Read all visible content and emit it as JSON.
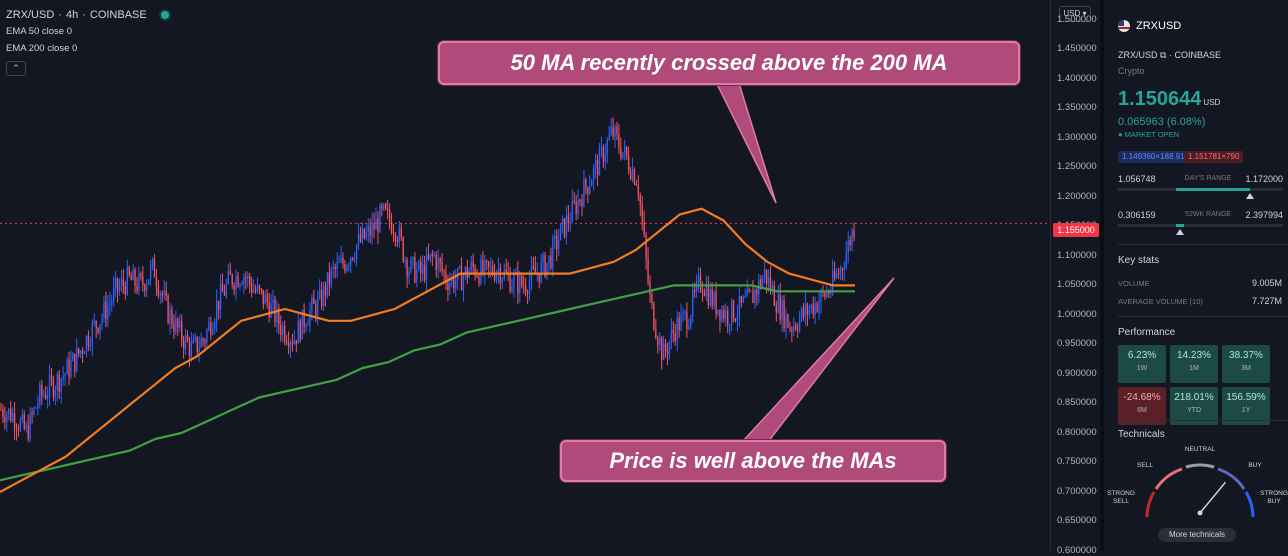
{
  "legend": {
    "symbol": "ZRX/USD",
    "interval": "4h",
    "exchange": "COINBASE",
    "ema50": "EMA 50 close 0",
    "ema200": "EMA 200 close 0",
    "collapse_icon": "chevron-up-icon"
  },
  "annotations": {
    "top": "50 MA recently crossed above the 200 MA",
    "bottom": "Price is well above the MAs"
  },
  "price_axis": {
    "currency": "USD",
    "current_price_tag": "1.155000",
    "ticks": [
      "1.500000",
      "1.450000",
      "1.400000",
      "1.350000",
      "1.300000",
      "1.250000",
      "1.200000",
      "1.150000",
      "1.100000",
      "1.050000",
      "1.000000",
      "0.950000",
      "0.900000",
      "0.850000",
      "0.800000",
      "0.750000",
      "0.700000",
      "0.650000",
      "0.600000"
    ]
  },
  "chart_data": {
    "type": "candlestick",
    "symbol": "ZRX/USD",
    "interval": "4h",
    "ylim": [
      0.6,
      1.52
    ],
    "current_price": 1.155,
    "colors": {
      "up": "#2962ff",
      "down": "#f7525f",
      "ema50": "#f57c1f",
      "ema200": "#43a047",
      "price_line": "#f23645"
    },
    "close_trend": [
      0.84,
      0.83,
      0.8,
      0.86,
      0.88,
      0.9,
      0.93,
      0.97,
      1.0,
      1.04,
      1.06,
      1.05,
      1.08,
      1.01,
      0.97,
      0.94,
      0.96,
      1.02,
      1.06,
      1.07,
      1.04,
      1.02,
      0.98,
      0.96,
      1.0,
      1.02,
      1.07,
      1.09,
      1.12,
      1.14,
      1.17,
      1.15,
      1.08,
      1.07,
      1.1,
      1.06,
      1.06,
      1.08,
      1.07,
      1.08,
      1.06,
      1.05,
      1.07,
      1.09,
      1.14,
      1.18,
      1.22,
      1.26,
      1.31,
      1.27,
      1.23,
      1.02,
      0.93,
      0.98,
      1.0,
      1.06,
      1.02,
      1.0,
      1.01,
      1.03,
      1.07,
      1.02,
      0.98,
      1.0,
      1.02,
      1.04,
      1.08,
      1.15
    ],
    "ema50": [
      0.7,
      0.72,
      0.74,
      0.76,
      0.79,
      0.82,
      0.85,
      0.88,
      0.91,
      0.93,
      0.96,
      0.99,
      1.0,
      1.01,
      1.0,
      0.99,
      0.99,
      1.0,
      1.01,
      1.03,
      1.05,
      1.07,
      1.07,
      1.07,
      1.07,
      1.07,
      1.07,
      1.08,
      1.09,
      1.11,
      1.14,
      1.17,
      1.18,
      1.16,
      1.12,
      1.09,
      1.07,
      1.06,
      1.05,
      1.05
    ],
    "ema200": [
      0.72,
      0.73,
      0.74,
      0.75,
      0.76,
      0.77,
      0.79,
      0.8,
      0.82,
      0.84,
      0.86,
      0.87,
      0.88,
      0.89,
      0.91,
      0.92,
      0.94,
      0.95,
      0.97,
      0.98,
      0.99,
      1.0,
      1.01,
      1.02,
      1.03,
      1.04,
      1.05,
      1.05,
      1.05,
      1.05,
      1.04,
      1.04,
      1.04,
      1.04
    ]
  },
  "panel": {
    "title": "ZRXUSD",
    "pair": "ZRX/USD",
    "exchange": "COINBASE",
    "category": "Crypto",
    "price": "1.150644",
    "price_currency": "USD",
    "change": "0.065963 (6.08%)",
    "market_status": "MARKET OPEN",
    "bid": "1.149360×188.91",
    "ask": "1.151781×790",
    "day_range": {
      "low": "1.056748",
      "label": "DAY'S RANGE",
      "high": "1.172000",
      "position": 0.8
    },
    "wk52_range": {
      "low": "0.306159",
      "label": "52WK RANGE",
      "high": "2.397994",
      "position": 0.4
    },
    "key_stats_title": "Key stats",
    "volume_label": "VOLUME",
    "volume": "9.005M",
    "avg_volume_label": "AVERAGE VOLUME (10)",
    "avg_volume": "7.727M",
    "performance_title": "Performance",
    "performance": [
      {
        "value": "6.23%",
        "period": "1W",
        "sign": "pos"
      },
      {
        "value": "14.23%",
        "period": "1M",
        "sign": "pos"
      },
      {
        "value": "38.37%",
        "period": "3M",
        "sign": "pos"
      },
      {
        "value": "-24.68%",
        "period": "6M",
        "sign": "neg"
      },
      {
        "value": "218.01%",
        "period": "YTD",
        "sign": "pos"
      },
      {
        "value": "156.59%",
        "period": "1Y",
        "sign": "pos"
      }
    ],
    "technicals_title": "Technicals",
    "gauge_labels": {
      "strong_sell": "STRONG SELL",
      "sell": "SELL",
      "neutral": "NEUTRAL",
      "buy": "BUY",
      "strong_buy": "STRONG BUY"
    },
    "gauge_value": 0.72,
    "more_technicals": "More technicals"
  }
}
